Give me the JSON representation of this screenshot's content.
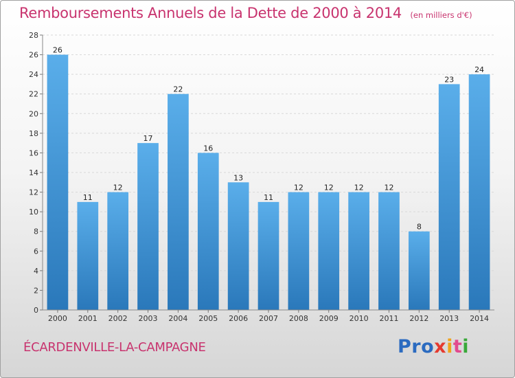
{
  "header": {
    "title": "Remboursements Annuels de la Dette de 2000 à 2014",
    "subtitle": "(en milliers d'€)"
  },
  "footer": {
    "commune": "ÉCARDENVILLE-LA-CAMPAGNE",
    "logo": [
      "Pro",
      "x",
      "i",
      "t",
      "i"
    ]
  },
  "chart_data": {
    "type": "bar",
    "title": "Remboursements Annuels de la Dette de 2000 à 2014",
    "subtitle": "(en milliers d'€)",
    "xlabel": "",
    "ylabel": "",
    "categories": [
      "2000",
      "2001",
      "2002",
      "2003",
      "2004",
      "2005",
      "2006",
      "2007",
      "2008",
      "2009",
      "2010",
      "2011",
      "2012",
      "2013",
      "2014"
    ],
    "values": [
      26,
      11,
      12,
      17,
      22,
      16,
      13,
      11,
      12,
      12,
      12,
      12,
      8,
      23,
      24
    ],
    "ylim": [
      0,
      28
    ],
    "yticks": [
      0,
      2,
      4,
      6,
      8,
      10,
      12,
      14,
      16,
      18,
      20,
      22,
      24,
      26,
      28
    ],
    "grid": true,
    "bar_color": "#3f8fd4",
    "title_color": "#c8336e"
  }
}
